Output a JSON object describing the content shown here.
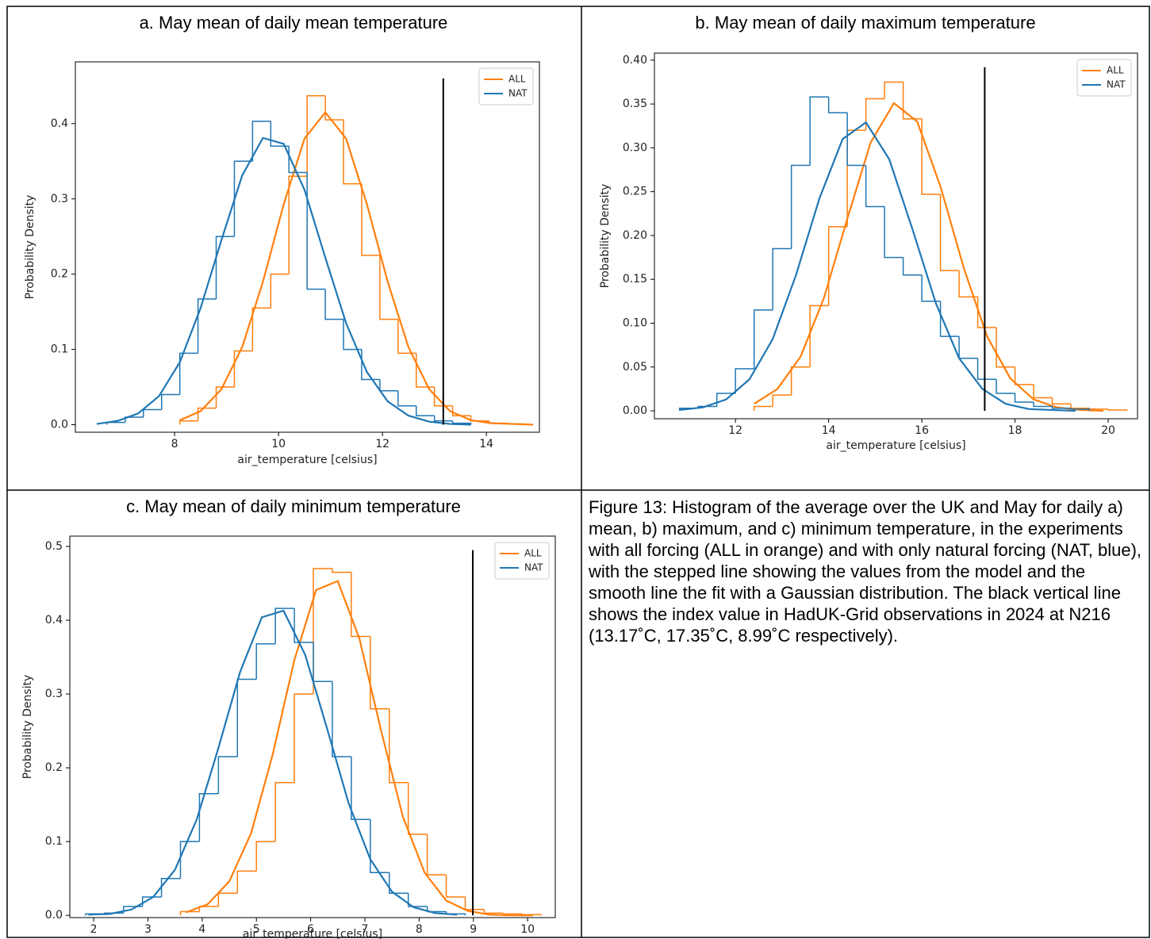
{
  "chart_data": [
    {
      "type": "histogram",
      "title": "a. May mean of daily mean temperature",
      "xlabel": "air_temperature [celsius]",
      "ylabel": "Probability Density",
      "xlim": [
        6.09,
        15.02
      ],
      "ylim": [
        -0.01,
        0.482
      ],
      "xticks": [
        8,
        10,
        12,
        14
      ],
      "yticks": [
        {
          "value": 0,
          "label": "0.0"
        },
        0.1,
        0.2,
        0.3,
        0.4
      ],
      "legend": "upper right",
      "vline": {
        "x": 13.17,
        "ymin": 0,
        "ymax": 0.46
      },
      "series": [
        {
          "name": "ALL",
          "color": "#ff7f0e",
          "bins": [
            8.1,
            8.45,
            8.8,
            9.15,
            9.5,
            9.85,
            10.2,
            10.55,
            10.9,
            11.25,
            11.6,
            11.95,
            12.3,
            12.65,
            13.0,
            13.35,
            13.7,
            14.05,
            14.4,
            14.75
          ],
          "values": [
            0.005,
            0.022,
            0.05,
            0.098,
            0.155,
            0.2,
            0.33,
            0.437,
            0.405,
            0.32,
            0.225,
            0.14,
            0.095,
            0.05,
            0.025,
            0.012,
            0.005,
            0.002,
            0.001
          ],
          "fit": {
            "x": [
              8.1,
              8.5,
              8.9,
              9.3,
              9.7,
              10.1,
              10.5,
              10.9,
              11.3,
              11.7,
              12.1,
              12.5,
              12.9,
              13.3,
              13.7,
              14.1,
              14.5,
              14.9
            ],
            "values": [
              0.006,
              0.018,
              0.047,
              0.103,
              0.19,
              0.293,
              0.38,
              0.415,
              0.38,
              0.293,
              0.19,
              0.103,
              0.047,
              0.018,
              0.006,
              0.002,
              0.001,
              0.0
            ]
          }
        },
        {
          "name": "NAT",
          "color": "#1f77b4",
          "bins": [
            6.7,
            7.05,
            7.4,
            7.75,
            8.1,
            8.45,
            8.8,
            9.15,
            9.5,
            9.85,
            10.2,
            10.55,
            10.9,
            11.25,
            11.6,
            11.95,
            12.3,
            12.65,
            13.0,
            13.35,
            13.7
          ],
          "values": [
            0.003,
            0.01,
            0.02,
            0.04,
            0.095,
            0.167,
            0.25,
            0.35,
            0.403,
            0.37,
            0.335,
            0.18,
            0.14,
            0.1,
            0.06,
            0.045,
            0.025,
            0.012,
            0.005,
            0.002
          ],
          "fit": {
            "x": [
              6.5,
              6.9,
              7.3,
              7.7,
              8.1,
              8.5,
              8.9,
              9.3,
              9.7,
              10.1,
              10.5,
              10.9,
              11.3,
              11.7,
              12.1,
              12.5,
              12.9,
              13.3,
              13.7
            ],
            "values": [
              0.001,
              0.005,
              0.015,
              0.038,
              0.083,
              0.155,
              0.245,
              0.331,
              0.381,
              0.373,
              0.312,
              0.222,
              0.135,
              0.07,
              0.031,
              0.012,
              0.004,
              0.001,
              0.0
            ]
          }
        }
      ]
    },
    {
      "type": "histogram",
      "title": "b. May mean of daily maximum temperature",
      "xlabel": "air_temperature [celsius]",
      "ylabel": "Probability Density",
      "xlim": [
        10.26,
        20.63
      ],
      "ylim": [
        -0.009,
        0.408
      ],
      "xticks": [
        12,
        14,
        16,
        18,
        20
      ],
      "yticks": [
        {
          "value": 0,
          "label": "0.00"
        },
        0.05,
        {
          "value": 0.1,
          "label": "0.10"
        },
        0.15,
        {
          "value": 0.2,
          "label": "0.20"
        },
        0.25,
        {
          "value": 0.3,
          "label": "0.30"
        },
        0.35,
        {
          "value": 0.4,
          "label": "0.40"
        }
      ],
      "legend": "upper right",
      "vline": {
        "x": 17.35,
        "ymin": 0,
        "ymax": 0.392
      },
      "series": [
        {
          "name": "ALL",
          "color": "#ff7f0e",
          "bins": [
            12.4,
            12.8,
            13.2,
            13.6,
            14.0,
            14.4,
            14.8,
            15.2,
            15.6,
            16.0,
            16.4,
            16.8,
            17.2,
            17.6,
            18.0,
            18.4,
            18.8,
            19.2,
            19.6,
            20.0,
            20.4
          ],
          "values": [
            0.005,
            0.018,
            0.05,
            0.12,
            0.21,
            0.32,
            0.356,
            0.375,
            0.333,
            0.247,
            0.16,
            0.13,
            0.095,
            0.05,
            0.03,
            0.015,
            0.008,
            0.003,
            0.002,
            0.001
          ],
          "fit": {
            "x": [
              12.4,
              12.9,
              13.4,
              13.9,
              14.4,
              14.9,
              15.4,
              15.9,
              16.4,
              16.9,
              17.4,
              17.9,
              18.4,
              18.9,
              19.4,
              19.9
            ],
            "values": [
              0.008,
              0.025,
              0.062,
              0.129,
              0.219,
              0.306,
              0.351,
              0.33,
              0.256,
              0.163,
              0.085,
              0.037,
              0.013,
              0.004,
              0.001,
              0.0
            ]
          }
        },
        {
          "name": "NAT",
          "color": "#1f77b4",
          "bins": [
            10.8,
            11.2,
            11.6,
            12.0,
            12.4,
            12.8,
            13.2,
            13.6,
            14.0,
            14.4,
            14.8,
            15.2,
            15.6,
            16.0,
            16.4,
            16.8,
            17.2,
            17.6,
            18.0,
            18.4,
            18.8,
            19.2,
            19.6
          ],
          "values": [
            0.003,
            0.005,
            0.02,
            0.048,
            0.115,
            0.185,
            0.28,
            0.358,
            0.34,
            0.28,
            0.233,
            0.175,
            0.155,
            0.125,
            0.085,
            0.06,
            0.036,
            0.02,
            0.01,
            0.005,
            0.003,
            0.002
          ],
          "fit": {
            "x": [
              10.8,
              11.3,
              11.8,
              12.3,
              12.8,
              13.3,
              13.8,
              14.3,
              14.8,
              15.3,
              15.8,
              16.3,
              16.8,
              17.3,
              17.8,
              18.3,
              18.8,
              19.3
            ],
            "values": [
              0.001,
              0.004,
              0.013,
              0.036,
              0.082,
              0.155,
              0.242,
              0.31,
              0.329,
              0.287,
              0.207,
              0.123,
              0.06,
              0.025,
              0.008,
              0.002,
              0.001,
              0.0
            ]
          }
        }
      ]
    },
    {
      "type": "histogram",
      "title": "c. May mean of daily minimum temperature",
      "xlabel": "air_temperature [celsius]",
      "ylabel": "Probability Density",
      "xlim": [
        1.56,
        10.51
      ],
      "ylim": [
        -0.003,
        0.514
      ],
      "xticks": [
        2,
        3,
        4,
        5,
        6,
        7,
        8,
        9,
        10
      ],
      "yticks": [
        {
          "value": 0,
          "label": "0.0"
        },
        0.1,
        0.2,
        0.3,
        0.4,
        0.5
      ],
      "legend": "upper right",
      "vline": {
        "x": 8.99,
        "ymin": 0,
        "ymax": 0.495
      },
      "series": [
        {
          "name": "ALL",
          "color": "#ff7f0e",
          "bins": [
            3.6,
            3.95,
            4.3,
            4.65,
            5.0,
            5.35,
            5.7,
            6.05,
            6.4,
            6.75,
            7.1,
            7.45,
            7.8,
            8.15,
            8.5,
            8.85,
            9.2,
            9.55,
            9.9,
            10.25
          ],
          "values": [
            0.005,
            0.012,
            0.03,
            0.06,
            0.1,
            0.18,
            0.3,
            0.47,
            0.465,
            0.378,
            0.28,
            0.18,
            0.11,
            0.055,
            0.025,
            0.008,
            0.003,
            0.002,
            0.001
          ],
          "fit": {
            "x": [
              3.7,
              4.1,
              4.5,
              4.9,
              5.3,
              5.7,
              6.1,
              6.5,
              6.9,
              7.3,
              7.7,
              8.1,
              8.5,
              8.9,
              9.3,
              9.7,
              10.1
            ],
            "values": [
              0.004,
              0.015,
              0.046,
              0.111,
              0.218,
              0.346,
              0.441,
              0.453,
              0.375,
              0.25,
              0.134,
              0.058,
              0.02,
              0.006,
              0.001,
              0.0,
              0.0
            ]
          }
        },
        {
          "name": "NAT",
          "color": "#1f77b4",
          "bins": [
            1.85,
            2.2,
            2.55,
            2.9,
            3.25,
            3.6,
            3.95,
            4.3,
            4.65,
            5.0,
            5.35,
            5.7,
            6.05,
            6.4,
            6.75,
            7.1,
            7.45,
            7.8,
            8.15,
            8.5,
            8.85
          ],
          "values": [
            0.002,
            0.003,
            0.012,
            0.025,
            0.05,
            0.1,
            0.165,
            0.215,
            0.32,
            0.368,
            0.416,
            0.37,
            0.317,
            0.215,
            0.13,
            0.058,
            0.03,
            0.012,
            0.005,
            0.002
          ],
          "fit": {
            "x": [
              1.9,
              2.3,
              2.7,
              3.1,
              3.5,
              3.9,
              4.3,
              4.7,
              5.1,
              5.5,
              5.9,
              6.3,
              6.7,
              7.1,
              7.5,
              7.9,
              8.3,
              8.7
            ],
            "values": [
              0.001,
              0.002,
              0.008,
              0.025,
              0.062,
              0.13,
              0.227,
              0.33,
              0.404,
              0.413,
              0.353,
              0.254,
              0.152,
              0.076,
              0.032,
              0.011,
              0.003,
              0.001
            ]
          }
        }
      ]
    }
  ],
  "caption": "Figure 13: Histogram of the average over the UK and May for daily a) mean, b) maximum, and c) minimum temperature, in the experiments with all forcing (ALL in orange) and with only natural forcing (NAT, blue), with the stepped line showing the values from the model and the smooth line the fit with a Gaussian distribution. The black vertical line shows the index value in HadUK-Grid observations in 2024 at N216 (13.17˚C, 17.35˚C, 8.99˚C respectively)."
}
